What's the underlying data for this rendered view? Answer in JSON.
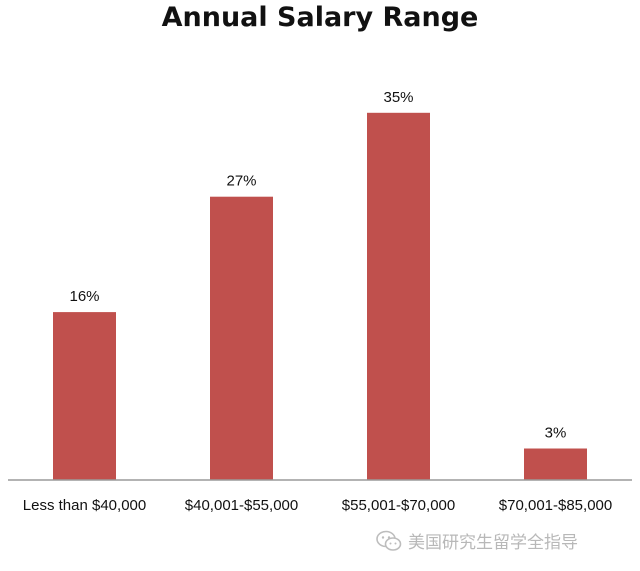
{
  "chart_data": {
    "type": "bar",
    "title": "Annual Salary Range",
    "categories": [
      "Less than $40,000",
      "$40,001-$55,000",
      "$55,001-$70,000",
      "$70,001-$85,000"
    ],
    "values": [
      16,
      27,
      35,
      3
    ],
    "data_labels": [
      "16%",
      "27%",
      "35%",
      "3%"
    ],
    "unit": "%",
    "xlabel": "",
    "ylabel": "",
    "ylim": [
      0,
      40
    ],
    "grid": false,
    "legend": "none",
    "bar_color": "#C0504D",
    "axis_color": "#9a9a9a"
  },
  "watermark": {
    "text": "美国研究生留学全指导",
    "icon": "wechat-icon"
  }
}
